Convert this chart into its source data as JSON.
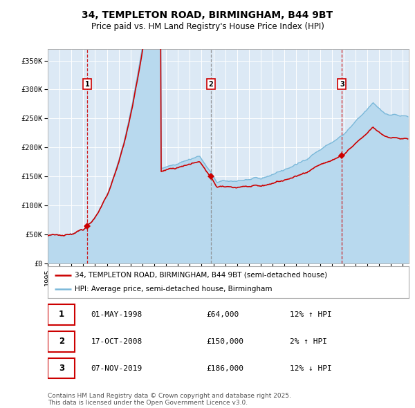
{
  "title": "34, TEMPLETON ROAD, BIRMINGHAM, B44 9BT",
  "subtitle": "Price paid vs. HM Land Registry's House Price Index (HPI)",
  "bg_color": "#dce9f5",
  "grid_color": "#ffffff",
  "hpi_color": "#7ab8d9",
  "hpi_fill_color": "#b8d9ee",
  "price_color": "#cc0000",
  "marker_color": "#cc0000",
  "sale_dates_num": [
    1998.33,
    2008.79,
    2019.85
  ],
  "sale_prices": [
    64000,
    150000,
    186000
  ],
  "sale_labels": [
    "1",
    "2",
    "3"
  ],
  "legend_property": "34, TEMPLETON ROAD, BIRMINGHAM, B44 9BT (semi-detached house)",
  "legend_hpi": "HPI: Average price, semi-detached house, Birmingham",
  "table_rows": [
    [
      "1",
      "01-MAY-1998",
      "£64,000",
      "12% ↑ HPI"
    ],
    [
      "2",
      "17-OCT-2008",
      "£150,000",
      "2% ↑ HPI"
    ],
    [
      "3",
      "07-NOV-2019",
      "£186,000",
      "12% ↓ HPI"
    ]
  ],
  "footnote": "Contains HM Land Registry data © Crown copyright and database right 2025.\nThis data is licensed under the Open Government Licence v3.0.",
  "ylim": [
    0,
    370000
  ],
  "yticks": [
    0,
    50000,
    100000,
    150000,
    200000,
    250000,
    300000,
    350000
  ],
  "ytick_labels": [
    "£0",
    "£50K",
    "£100K",
    "£150K",
    "£200K",
    "£250K",
    "£300K",
    "£350K"
  ],
  "xlim_start": 1995.0,
  "xlim_end": 2025.5
}
